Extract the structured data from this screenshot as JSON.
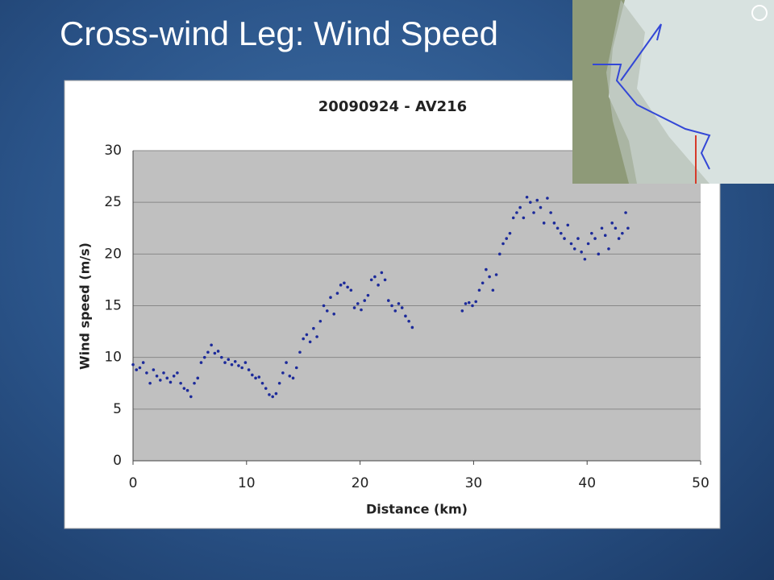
{
  "slide_title": "Cross-wind Leg: Wind Speed",
  "chart_data": {
    "type": "scatter",
    "title": "20090924 - AV216",
    "x_label": "Distance (km)",
    "y_label": "Wind speed (m/s)",
    "xlim": [
      0,
      50
    ],
    "xticks": [
      0,
      10,
      20,
      30,
      40,
      50
    ],
    "ylim": [
      0,
      30
    ],
    "yticks": [
      0,
      5,
      10,
      15,
      20,
      25,
      30
    ],
    "grid": true,
    "color": "#1c2a9a",
    "x": [
      0,
      0.3,
      0.6,
      0.9,
      1.2,
      1.5,
      1.8,
      2.1,
      2.4,
      2.7,
      3.0,
      3.3,
      3.6,
      3.9,
      4.2,
      4.5,
      4.8,
      5.1,
      5.4,
      5.7,
      6.0,
      6.3,
      6.6,
      6.9,
      7.2,
      7.5,
      7.8,
      8.1,
      8.4,
      8.7,
      9.0,
      9.3,
      9.6,
      9.9,
      10.2,
      10.5,
      10.8,
      11.1,
      11.4,
      11.7,
      12.0,
      12.3,
      12.6,
      12.9,
      13.2,
      13.5,
      13.8,
      14.1,
      14.4,
      14.7,
      15.0,
      15.3,
      15.6,
      15.9,
      16.2,
      16.5,
      16.8,
      17.1,
      17.4,
      17.7,
      18.0,
      18.3,
      18.6,
      18.9,
      19.2,
      19.5,
      19.8,
      20.1,
      20.4,
      20.7,
      21.0,
      21.3,
      21.6,
      21.9,
      22.2,
      22.5,
      22.8,
      23.1,
      23.4,
      23.7,
      24.0,
      24.3,
      24.6,
      29.0,
      29.3,
      29.6,
      29.9,
      30.2,
      30.5,
      30.8,
      31.1,
      31.4,
      31.7,
      32.0,
      32.3,
      32.6,
      32.9,
      33.2,
      33.5,
      33.8,
      34.1,
      34.4,
      34.7,
      35.0,
      35.3,
      35.6,
      35.9,
      36.2,
      36.5,
      36.8,
      37.1,
      37.4,
      37.7,
      38.0,
      38.3,
      38.6,
      38.9,
      39.2,
      39.5,
      39.8,
      40.1,
      40.4,
      40.7,
      41.0,
      41.3,
      41.6,
      41.9,
      42.2,
      42.5,
      42.8,
      43.1,
      43.4,
      43.6
    ],
    "values": [
      9.3,
      8.8,
      9.0,
      9.5,
      8.5,
      7.5,
      8.8,
      8.2,
      7.8,
      8.5,
      8.0,
      7.6,
      8.2,
      8.5,
      7.5,
      7.0,
      6.8,
      6.2,
      7.5,
      8.0,
      9.5,
      10.0,
      10.5,
      11.2,
      10.4,
      10.6,
      10.0,
      9.5,
      9.8,
      9.3,
      9.6,
      9.2,
      9.0,
      9.5,
      8.8,
      8.3,
      8.0,
      8.1,
      7.5,
      7.0,
      6.4,
      6.2,
      6.5,
      7.5,
      8.5,
      9.5,
      8.2,
      8.0,
      9.0,
      10.5,
      11.8,
      12.2,
      11.5,
      12.8,
      12.0,
      13.5,
      15.0,
      14.5,
      15.8,
      14.2,
      16.2,
      17.0,
      17.2,
      16.8,
      16.5,
      14.8,
      15.2,
      14.6,
      15.5,
      16.0,
      17.5,
      17.8,
      17.0,
      18.2,
      17.5,
      15.5,
      15.0,
      14.5,
      15.2,
      14.8,
      14.0,
      13.5,
      12.9,
      14.5,
      15.2,
      15.3,
      15.0,
      15.4,
      16.5,
      17.2,
      18.5,
      17.8,
      16.5,
      18.0,
      20.0,
      21.0,
      21.5,
      22.0,
      23.5,
      24.0,
      24.5,
      23.5,
      25.5,
      25.0,
      24.0,
      25.2,
      24.5,
      23.0,
      25.4,
      24.0,
      23.0,
      22.5,
      22.0,
      21.5,
      22.8,
      21.0,
      20.5,
      21.5,
      20.2,
      19.5,
      21.0,
      22.0,
      21.5,
      20.0,
      22.5,
      21.8,
      20.5,
      23.0,
      22.5,
      21.5,
      22.0,
      24.0,
      22.5
    ]
  }
}
